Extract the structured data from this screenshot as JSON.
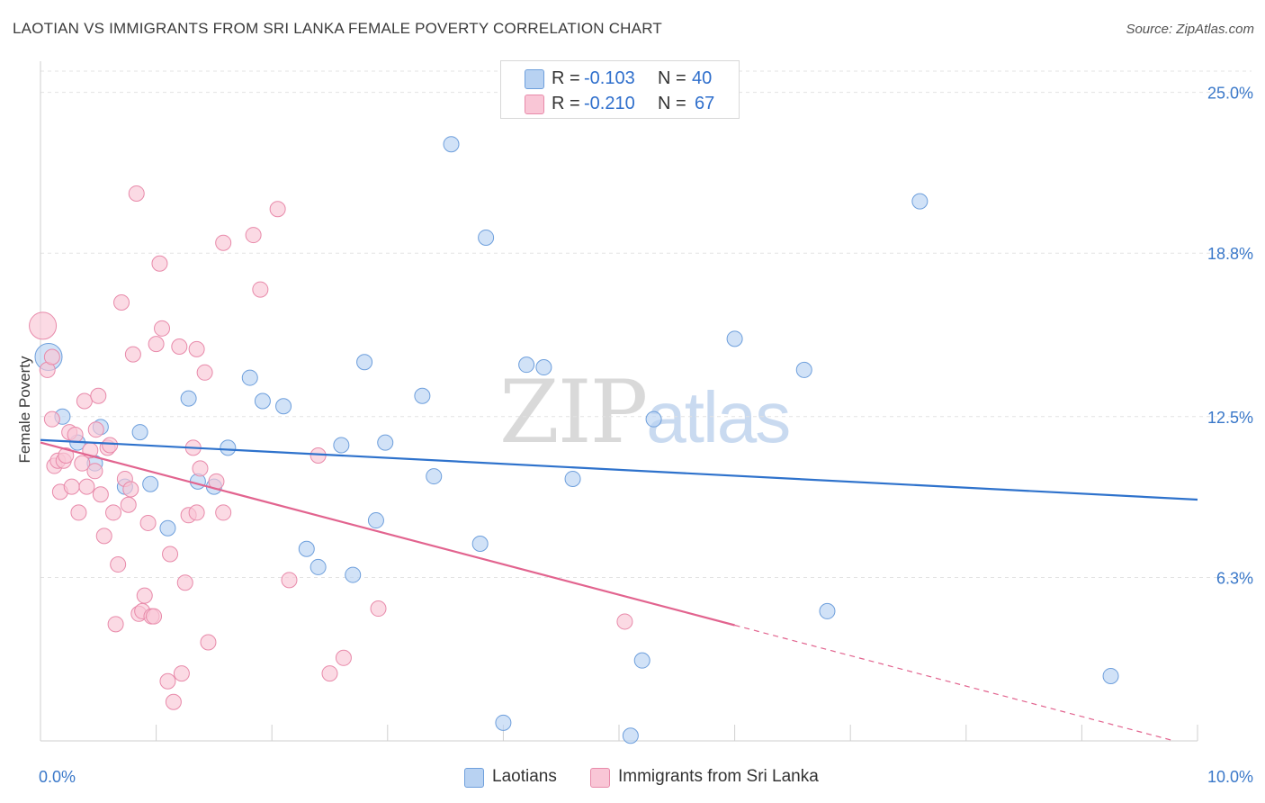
{
  "header": {
    "title": "LAOTIAN VS IMMIGRANTS FROM SRI LANKA FEMALE POVERTY CORRELATION CHART",
    "source": "Source: ZipAtlas.com"
  },
  "watermark": {
    "part1": "ZIP",
    "part2": "atlas"
  },
  "stats": {
    "laotians": {
      "r_label": "R =",
      "r_value": "-0.103",
      "n_label": "N =",
      "n_value": "40"
    },
    "srilanka": {
      "r_label": "R =",
      "r_value": "-0.210",
      "n_label": "N =",
      "n_value": "67"
    }
  },
  "colors": {
    "blue_fill": "#b8d2f2",
    "blue_stroke": "#6e9fdc",
    "blue_line": "#2e72cc",
    "pink_fill": "#f9c6d6",
    "pink_stroke": "#e88aaa",
    "pink_line": "#e2648f",
    "axis_text": "#3a78c9"
  },
  "chart_data": {
    "type": "scatter",
    "title": "LAOTIAN VS IMMIGRANTS FROM SRI LANKA FEMALE POVERTY CORRELATION CHART",
    "xlabel": "",
    "ylabel": "Female Poverty",
    "xlim": [
      0,
      10
    ],
    "ylim": [
      0,
      26.2
    ],
    "x_tick_labels": [
      {
        "value": 0,
        "label": "0.0%"
      },
      {
        "value": 10,
        "label": "10.0%"
      }
    ],
    "y_tick_labels": [
      {
        "value": 6.3,
        "label": "6.3%"
      },
      {
        "value": 12.5,
        "label": "12.5%"
      },
      {
        "value": 18.8,
        "label": "18.8%"
      },
      {
        "value": 25.0,
        "label": "25.0%"
      }
    ],
    "legend": [
      "Laotians",
      "Immigrants from Sri Lanka"
    ],
    "series": [
      {
        "name": "Laotians",
        "color": "#6e9fdc",
        "trend": {
          "x0": 0,
          "y0": 11.6,
          "x1": 10,
          "y1": 9.3,
          "dashed_from": null
        },
        "points": [
          {
            "x": 0.07,
            "y": 14.8,
            "big": true
          },
          {
            "x": 0.19,
            "y": 12.5,
            "big": false
          },
          {
            "x": 0.32,
            "y": 11.5,
            "big": false
          },
          {
            "x": 0.52,
            "y": 12.1,
            "big": false
          },
          {
            "x": 0.47,
            "y": 10.7,
            "big": false
          },
          {
            "x": 0.86,
            "y": 11.9,
            "big": false
          },
          {
            "x": 0.95,
            "y": 9.9,
            "big": false
          },
          {
            "x": 0.73,
            "y": 9.8,
            "big": false
          },
          {
            "x": 1.1,
            "y": 8.2,
            "big": false
          },
          {
            "x": 1.28,
            "y": 13.2,
            "big": false
          },
          {
            "x": 1.36,
            "y": 10.0,
            "big": false
          },
          {
            "x": 1.5,
            "y": 9.8,
            "big": false
          },
          {
            "x": 1.62,
            "y": 11.3,
            "big": false
          },
          {
            "x": 1.81,
            "y": 14.0,
            "big": false
          },
          {
            "x": 1.92,
            "y": 13.1,
            "big": false
          },
          {
            "x": 2.1,
            "y": 12.9,
            "big": false
          },
          {
            "x": 2.3,
            "y": 7.4,
            "big": false
          },
          {
            "x": 2.4,
            "y": 6.7,
            "big": false
          },
          {
            "x": 2.6,
            "y": 11.4,
            "big": false
          },
          {
            "x": 2.7,
            "y": 6.4,
            "big": false
          },
          {
            "x": 2.8,
            "y": 14.6,
            "big": false
          },
          {
            "x": 2.98,
            "y": 11.5,
            "big": false
          },
          {
            "x": 2.9,
            "y": 8.5,
            "big": false
          },
          {
            "x": 3.3,
            "y": 13.3,
            "big": false
          },
          {
            "x": 3.4,
            "y": 10.2,
            "big": false
          },
          {
            "x": 3.55,
            "y": 23.0,
            "big": false
          },
          {
            "x": 3.8,
            "y": 7.6,
            "big": false
          },
          {
            "x": 3.85,
            "y": 19.4,
            "big": false
          },
          {
            "x": 4.0,
            "y": 0.7,
            "big": false
          },
          {
            "x": 4.2,
            "y": 14.5,
            "big": false
          },
          {
            "x": 4.35,
            "y": 14.4,
            "big": false
          },
          {
            "x": 4.6,
            "y": 10.1,
            "big": false
          },
          {
            "x": 5.1,
            "y": 0.2,
            "big": false
          },
          {
            "x": 5.2,
            "y": 3.1,
            "big": false
          },
          {
            "x": 5.3,
            "y": 12.4,
            "big": false
          },
          {
            "x": 6.0,
            "y": 15.5,
            "big": false
          },
          {
            "x": 6.6,
            "y": 14.3,
            "big": false
          },
          {
            "x": 6.8,
            "y": 5.0,
            "big": false
          },
          {
            "x": 7.6,
            "y": 20.8,
            "big": false
          },
          {
            "x": 9.25,
            "y": 2.5,
            "big": false
          }
        ]
      },
      {
        "name": "Immigrants from Sri Lanka",
        "color": "#e88aaa",
        "trend": {
          "x0": 0,
          "y0": 11.5,
          "x1": 9.8,
          "y1": 0.0,
          "dashed_from": 6.0
        },
        "points": [
          {
            "x": 0.02,
            "y": 16.0,
            "big": true
          },
          {
            "x": 0.06,
            "y": 14.3,
            "big": false
          },
          {
            "x": 0.1,
            "y": 14.8,
            "big": false
          },
          {
            "x": 0.1,
            "y": 12.4,
            "big": false
          },
          {
            "x": 0.12,
            "y": 10.6,
            "big": false
          },
          {
            "x": 0.15,
            "y": 10.8,
            "big": false
          },
          {
            "x": 0.17,
            "y": 9.6,
            "big": false
          },
          {
            "x": 0.2,
            "y": 10.8,
            "big": false
          },
          {
            "x": 0.22,
            "y": 11.0,
            "big": false
          },
          {
            "x": 0.25,
            "y": 11.9,
            "big": false
          },
          {
            "x": 0.27,
            "y": 9.8,
            "big": false
          },
          {
            "x": 0.3,
            "y": 11.8,
            "big": false
          },
          {
            "x": 0.33,
            "y": 8.8,
            "big": false
          },
          {
            "x": 0.36,
            "y": 10.7,
            "big": false
          },
          {
            "x": 0.38,
            "y": 13.1,
            "big": false
          },
          {
            "x": 0.4,
            "y": 9.8,
            "big": false
          },
          {
            "x": 0.43,
            "y": 11.2,
            "big": false
          },
          {
            "x": 0.47,
            "y": 10.4,
            "big": false
          },
          {
            "x": 0.48,
            "y": 12.0,
            "big": false
          },
          {
            "x": 0.5,
            "y": 13.3,
            "big": false
          },
          {
            "x": 0.52,
            "y": 9.5,
            "big": false
          },
          {
            "x": 0.55,
            "y": 7.9,
            "big": false
          },
          {
            "x": 0.58,
            "y": 11.3,
            "big": false
          },
          {
            "x": 0.6,
            "y": 11.4,
            "big": false
          },
          {
            "x": 0.63,
            "y": 8.8,
            "big": false
          },
          {
            "x": 0.65,
            "y": 4.5,
            "big": false
          },
          {
            "x": 0.67,
            "y": 6.8,
            "big": false
          },
          {
            "x": 0.7,
            "y": 16.9,
            "big": false
          },
          {
            "x": 0.73,
            "y": 10.1,
            "big": false
          },
          {
            "x": 0.76,
            "y": 9.1,
            "big": false
          },
          {
            "x": 0.78,
            "y": 9.7,
            "big": false
          },
          {
            "x": 0.8,
            "y": 14.9,
            "big": false
          },
          {
            "x": 0.83,
            "y": 21.1,
            "big": false
          },
          {
            "x": 0.85,
            "y": 4.9,
            "big": false
          },
          {
            "x": 0.88,
            "y": 5.0,
            "big": false
          },
          {
            "x": 0.9,
            "y": 5.6,
            "big": false
          },
          {
            "x": 0.93,
            "y": 8.4,
            "big": false
          },
          {
            "x": 0.96,
            "y": 4.8,
            "big": false
          },
          {
            "x": 0.98,
            "y": 4.8,
            "big": false
          },
          {
            "x": 1.0,
            "y": 15.3,
            "big": false
          },
          {
            "x": 1.03,
            "y": 18.4,
            "big": false
          },
          {
            "x": 1.05,
            "y": 15.9,
            "big": false
          },
          {
            "x": 1.1,
            "y": 2.3,
            "big": false
          },
          {
            "x": 1.12,
            "y": 7.2,
            "big": false
          },
          {
            "x": 1.15,
            "y": 1.5,
            "big": false
          },
          {
            "x": 1.2,
            "y": 15.2,
            "big": false
          },
          {
            "x": 1.22,
            "y": 2.6,
            "big": false
          },
          {
            "x": 1.25,
            "y": 6.1,
            "big": false
          },
          {
            "x": 1.28,
            "y": 8.7,
            "big": false
          },
          {
            "x": 1.32,
            "y": 11.3,
            "big": false
          },
          {
            "x": 1.35,
            "y": 8.8,
            "big": false
          },
          {
            "x": 1.35,
            "y": 15.1,
            "big": false
          },
          {
            "x": 1.38,
            "y": 10.5,
            "big": false
          },
          {
            "x": 1.42,
            "y": 14.2,
            "big": false
          },
          {
            "x": 1.45,
            "y": 3.8,
            "big": false
          },
          {
            "x": 1.52,
            "y": 10.0,
            "big": false
          },
          {
            "x": 1.58,
            "y": 8.8,
            "big": false
          },
          {
            "x": 1.58,
            "y": 19.2,
            "big": false
          },
          {
            "x": 1.84,
            "y": 19.5,
            "big": false
          },
          {
            "x": 1.9,
            "y": 17.4,
            "big": false
          },
          {
            "x": 2.05,
            "y": 20.5,
            "big": false
          },
          {
            "x": 2.15,
            "y": 6.2,
            "big": false
          },
          {
            "x": 2.4,
            "y": 11.0,
            "big": false
          },
          {
            "x": 2.5,
            "y": 2.6,
            "big": false
          },
          {
            "x": 2.62,
            "y": 3.2,
            "big": false
          },
          {
            "x": 2.92,
            "y": 5.1,
            "big": false
          },
          {
            "x": 5.05,
            "y": 4.6,
            "big": false
          }
        ]
      }
    ]
  },
  "legend": {
    "laotians": "Laotians",
    "srilanka": "Immigrants from Sri Lanka"
  }
}
